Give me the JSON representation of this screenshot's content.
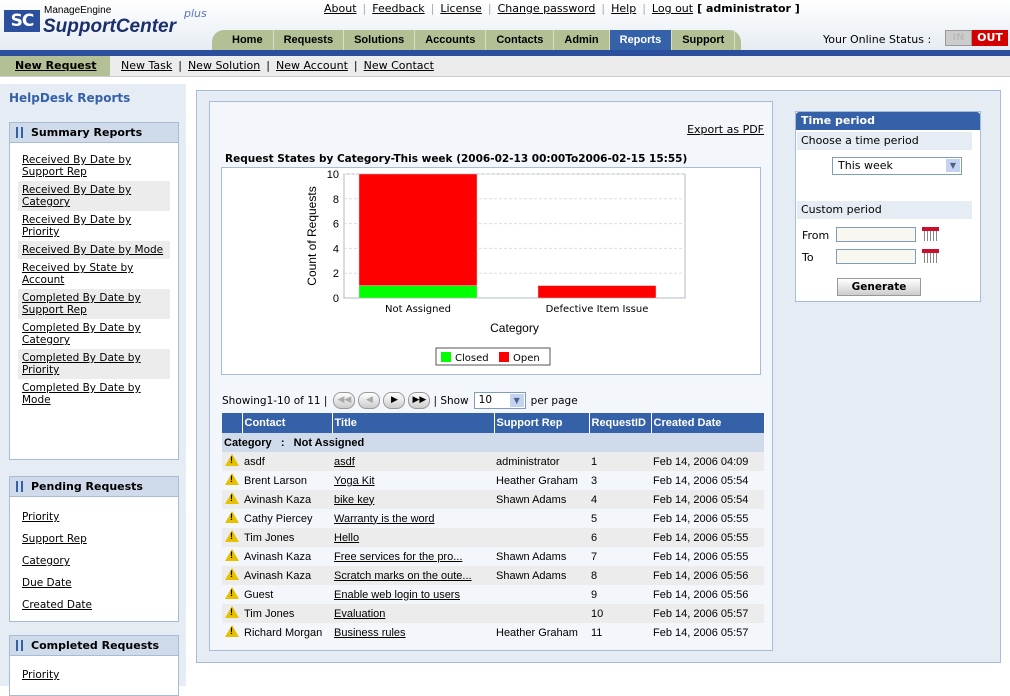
{
  "brand": {
    "small": "ManageEngine",
    "name": "SupportCenter",
    "suffix": "plus",
    "logo_text": "SC"
  },
  "top_links": [
    "About",
    "Feedback",
    "License",
    "Change password",
    "Help",
    "Log out"
  ],
  "user": "[ administrator ]",
  "tabs": [
    {
      "label": "Home"
    },
    {
      "label": "Requests"
    },
    {
      "label": "Solutions"
    },
    {
      "label": "Accounts"
    },
    {
      "label": "Contacts"
    },
    {
      "label": "Admin"
    },
    {
      "label": "Reports",
      "active": true
    },
    {
      "label": "Support"
    }
  ],
  "online_status": {
    "label": "Your Online Status :",
    "in": "IN",
    "out": "OUT",
    "current": "OUT"
  },
  "subnav": {
    "primary": "New Request",
    "links": [
      "New Task",
      "New Solution",
      "New Account",
      "New Contact"
    ]
  },
  "sidebar": {
    "title": "HelpDesk Reports",
    "summary": {
      "title": "Summary Reports",
      "items": [
        "Received By Date by Support Rep",
        "Received By Date by Category",
        "Received By Date by Priority",
        "Received By Date by Mode",
        "Received by State by Account",
        "Completed By Date by Support Rep",
        "Completed By Date by Category",
        "Completed By Date by Priority",
        "Completed By Date by Mode"
      ]
    },
    "pending": {
      "title": "Pending Requests",
      "items": [
        "Priority",
        "Support Rep",
        "Category",
        "Due Date",
        "Created Date"
      ]
    },
    "completed": {
      "title": "Completed Requests",
      "items": [
        "Priority"
      ]
    }
  },
  "main": {
    "export_label": "Export as PDF",
    "chart_title": "Request States by Category-This week (2006-02-13 00:00To2006-02-15 15:55)",
    "pager": {
      "showing": "Showing1-10 of 11 |",
      "show_label": "| Show",
      "per_page_value": "10",
      "per_page_label": "per page"
    },
    "table": {
      "columns": [
        "",
        "Contact",
        "Title",
        "Support Rep",
        "RequestID",
        "Created Date"
      ],
      "group_label": "Category   :   Not Assigned",
      "rows": [
        [
          "asdf",
          "asdf",
          "administrator",
          "1",
          "Feb 14, 2006 04:09"
        ],
        [
          "Brent Larson",
          "Yoga Kit",
          "Heather Graham",
          "3",
          "Feb 14, 2006 05:54"
        ],
        [
          "Avinash Kaza",
          "bike key",
          "Shawn Adams",
          "4",
          "Feb 14, 2006 05:54"
        ],
        [
          "Cathy Piercey",
          "Warranty is the word",
          "",
          "5",
          "Feb 14, 2006 05:55"
        ],
        [
          "Tim Jones",
          "Hello",
          "",
          "6",
          "Feb 14, 2006 05:55"
        ],
        [
          "Avinash Kaza",
          "Free services for the pro...",
          "Shawn Adams",
          "7",
          "Feb 14, 2006 05:55"
        ],
        [
          "Avinash Kaza",
          "Scratch marks on the oute...",
          "Shawn Adams",
          "8",
          "Feb 14, 2006 05:56"
        ],
        [
          "Guest",
          "Enable web login to users",
          "",
          "9",
          "Feb 14, 2006 05:56"
        ],
        [
          "Tim Jones",
          "Evaluation",
          "",
          "10",
          "Feb 14, 2006 05:57"
        ],
        [
          "Richard Morgan",
          "Business rules",
          "Heather Graham",
          "11",
          "Feb 14, 2006 05:57"
        ]
      ],
      "row_icon": "warning-icon"
    }
  },
  "time_period": {
    "title": "Time period",
    "choose_label": "Choose a time period",
    "selected": "This week",
    "custom_label": "Custom period",
    "from_label": "From",
    "to_label": "To",
    "from_value": "",
    "to_value": "",
    "generate_label": "Generate"
  },
  "chart_data": {
    "type": "bar",
    "stacked": true,
    "categories": [
      "Not Assigned",
      "Defective Item Issue"
    ],
    "series": [
      {
        "name": "Closed",
        "values": [
          1,
          0
        ],
        "color": "#00ff00"
      },
      {
        "name": "Open",
        "values": [
          9,
          1
        ],
        "color": "#ff0000"
      }
    ],
    "xlabel": "Category",
    "ylabel": "Count of Requests",
    "ylim": [
      0,
      10
    ],
    "yticks": [
      0,
      2,
      4,
      6,
      8,
      10
    ],
    "grid": true,
    "legend": "bottom"
  }
}
